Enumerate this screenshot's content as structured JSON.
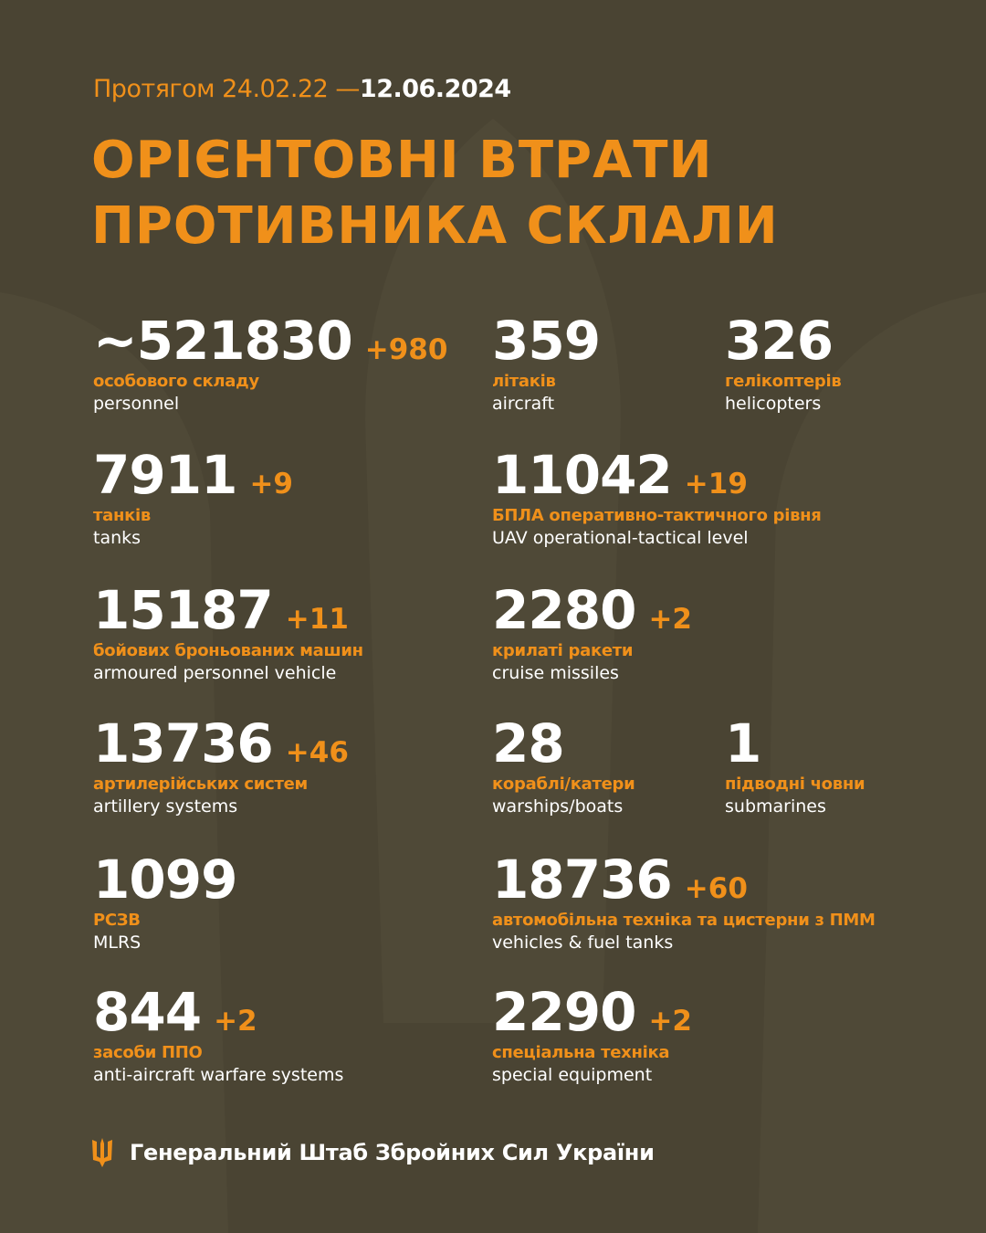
{
  "header": {
    "period_prefix": "Протягом 24.02.22 —",
    "period_end": "12.06.2024",
    "title_line1": "ОРІЄНТОВНІ ВТРАТИ",
    "title_line2": "ПРОТИВНИКА СКЛАЛИ"
  },
  "colors": {
    "background": "#4a4433",
    "accent": "#f0901a",
    "text": "#ffffff"
  },
  "stats": [
    {
      "value": "~521830",
      "delta": "+980",
      "ua": "особового складу",
      "en": "personnel"
    },
    {
      "value": "359",
      "delta": "",
      "ua": "літаків",
      "en": "aircraft"
    },
    {
      "value": "326",
      "delta": "",
      "ua": "гелікоптерів",
      "en": "helicopters"
    },
    {
      "value": "7911",
      "delta": "+9",
      "ua": "танків",
      "en": "tanks"
    },
    {
      "value": "11042",
      "delta": "+19",
      "ua": "БПЛА оперативно-тактичного рівня",
      "en": "UAV operational-tactical level"
    },
    {
      "value": "15187",
      "delta": "+11",
      "ua": "бойових броньованих машин",
      "en": "armoured personnel vehicle"
    },
    {
      "value": "2280",
      "delta": "+2",
      "ua": "крилаті ракети",
      "en": "cruise missiles"
    },
    {
      "value": "13736",
      "delta": "+46",
      "ua": "артилерійських систем",
      "en": "artillery systems"
    },
    {
      "value": "28",
      "delta": "",
      "ua": "кораблі/катери",
      "en": "warships/boats"
    },
    {
      "value": "1",
      "delta": "",
      "ua": "підводні човни",
      "en": "submarines"
    },
    {
      "value": "1099",
      "delta": "",
      "ua": "РСЗВ",
      "en": "MLRS"
    },
    {
      "value": "18736",
      "delta": "+60",
      "ua": "автомобільна техніка та цистерни з ПММ",
      "en": "vehicles & fuel tanks"
    },
    {
      "value": "844",
      "delta": "+2",
      "ua": "засоби ППО",
      "en": "anti-aircraft warfare systems"
    },
    {
      "value": "2290",
      "delta": "+2",
      "ua": "спеціальна техніка",
      "en": "special equipment"
    }
  ],
  "footer": {
    "org": "Генеральний Штаб Збройних Сил України",
    "logo_icon": "trident-icon"
  }
}
